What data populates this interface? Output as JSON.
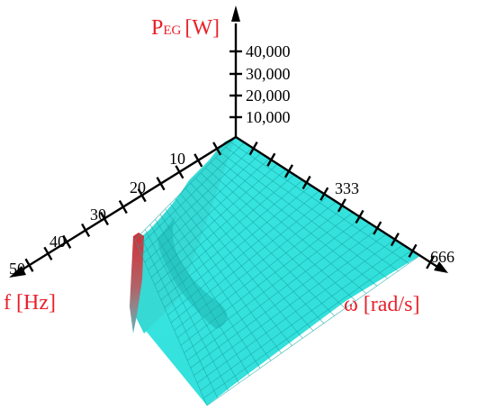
{
  "chart_data": {
    "type": "surface3d",
    "title": "",
    "z_axis": {
      "label_main": "P",
      "label_sub": "EG",
      "label_unit": "[W]",
      "ticks": [
        "40,000",
        "30,000",
        "20,000",
        "10,000"
      ]
    },
    "f_axis": {
      "label": "f [Hz]",
      "ticks": [
        "10",
        "20",
        "30",
        "40",
        "50"
      ],
      "range": [
        0,
        50
      ]
    },
    "w_axis": {
      "label": "ω [rad/s]",
      "ticks": [
        "333",
        "666"
      ],
      "range": [
        0,
        666
      ]
    },
    "surface": {
      "description_colors": {
        "low": "#33e6e0",
        "high": "#cc2a30"
      },
      "peak_f_hz": 50,
      "peak_w_rad_s": 0
    }
  },
  "colors": {
    "axis_label": "#e8202a",
    "surface_base": "#2fe1dd",
    "surface_peak": "#c62f35",
    "mesh": "#1aa7a8"
  }
}
